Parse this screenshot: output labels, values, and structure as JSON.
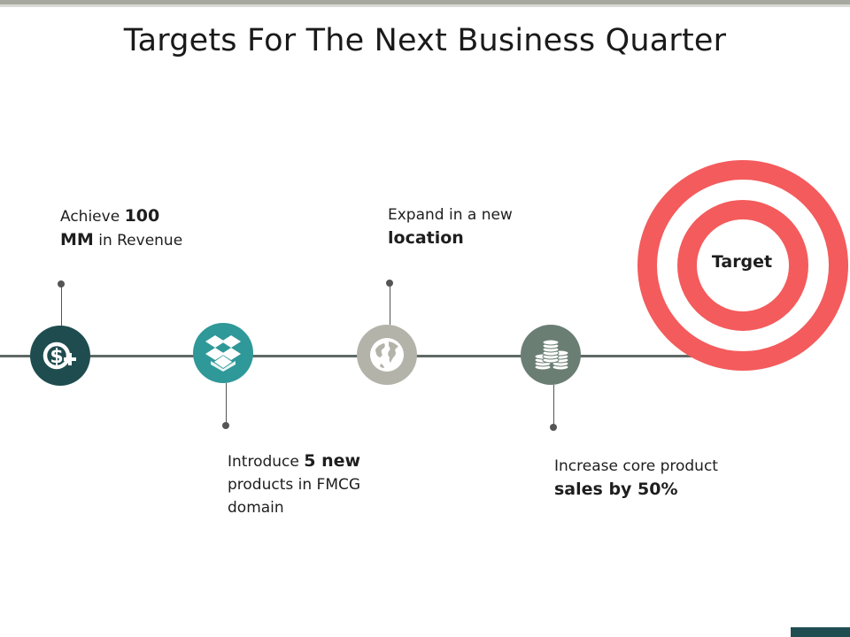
{
  "slide": {
    "title": "Targets For The Next Business Quarter"
  },
  "milestones": [
    {
      "icon": "dollar-plus-icon",
      "color": "#1f4d4f",
      "line1_pre": "Achieve ",
      "line1_bold": "100",
      "line2_bold": "MM",
      "line2_post": " in Revenue"
    },
    {
      "icon": "dropbox-icon",
      "color": "#2f9898",
      "line1_pre": "Introduce ",
      "line1_bold": "5 new",
      "line2": "products in FMCG",
      "line3": "domain"
    },
    {
      "icon": "globe-icon",
      "color": "#b3b3aa",
      "line1": "Expand in a new",
      "line2_bold": "location"
    },
    {
      "icon": "coins-icon",
      "color": "#6a7e74",
      "line1": "Increase core product",
      "line2_bold": "sales by 50%"
    }
  ],
  "target": {
    "label": "Target",
    "color": "#f45b5c",
    "icon": "target-icon"
  },
  "colors": {
    "timeline": "#5f6a66",
    "accent_tab": "#1f4e52"
  }
}
